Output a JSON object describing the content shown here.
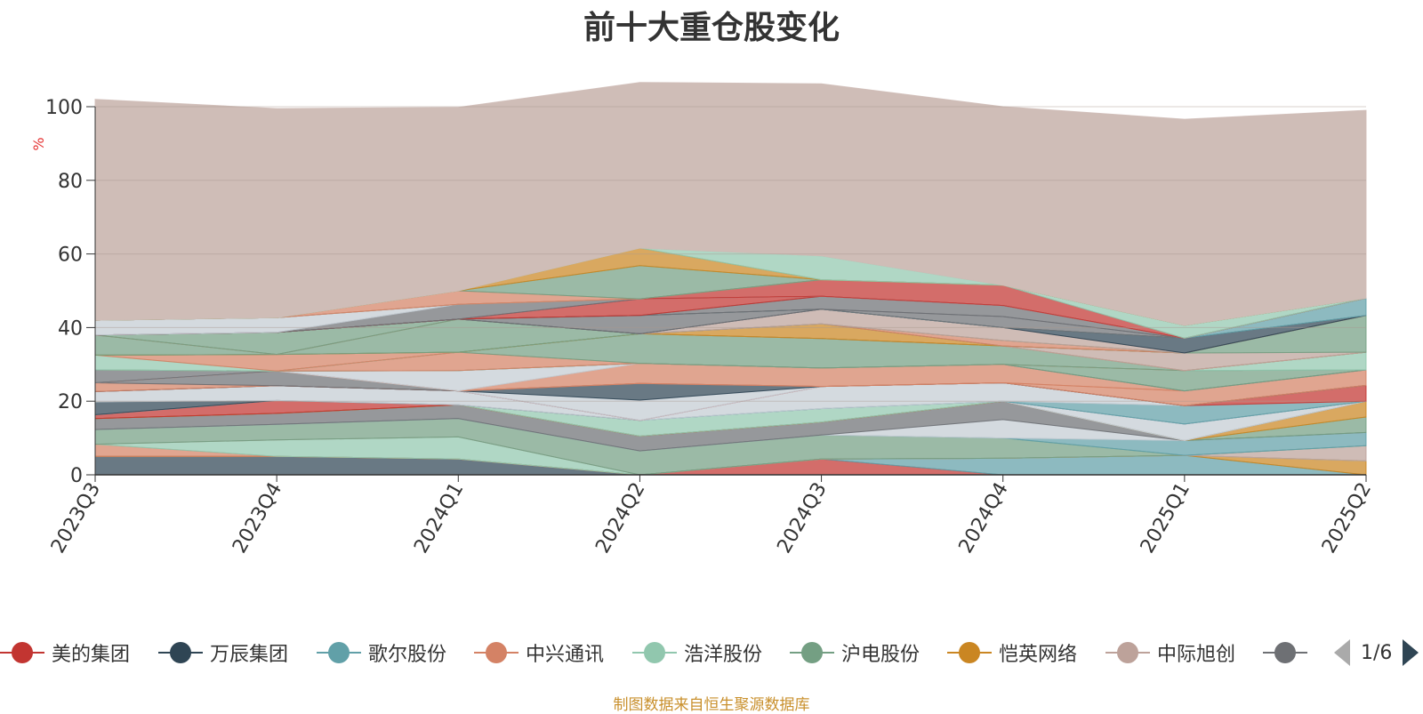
{
  "title": "前十大重仓股变化",
  "source": "制图数据来自恒生聚源数据库",
  "legend": {
    "pager": "1/6",
    "items": [
      {
        "name": "美的集团",
        "color": "#c23531"
      },
      {
        "name": "万辰集团",
        "color": "#2f4554"
      },
      {
        "name": "歌尔股份",
        "color": "#61a0a8"
      },
      {
        "name": "中兴通讯",
        "color": "#d48265"
      },
      {
        "name": "浩洋股份",
        "color": "#91c7ae"
      },
      {
        "name": "沪电股份",
        "color": "#749f83"
      },
      {
        "name": "恺英网络",
        "color": "#ca8622"
      },
      {
        "name": "中际旭创",
        "color": "#bda29a"
      },
      {
        "name": "",
        "color": "#6e7074"
      }
    ]
  },
  "chart_data": {
    "type": "area",
    "title": "前十大重仓股变化",
    "ylabel": "%",
    "ylim": [
      0,
      100
    ],
    "yticks": [
      0,
      20,
      40,
      60,
      80,
      100
    ],
    "categories": [
      "2023Q3",
      "2023Q4",
      "2024Q1",
      "2024Q2",
      "2024Q3",
      "2024Q4",
      "2025Q1",
      "2025Q2"
    ],
    "stacked": true,
    "series": [
      {
        "values": [
          5.0,
          5.0,
          4.3,
          0,
          0,
          0,
          0,
          0
        ],
        "color": "#2f4554"
      },
      {
        "values": [
          0,
          0,
          0,
          0,
          4.3,
          0,
          0,
          0
        ],
        "color": "#c23531"
      },
      {
        "values": [
          0,
          0,
          0,
          0,
          0,
          4.5,
          5.3,
          0
        ],
        "color": "#61a0a8"
      },
      {
        "values": [
          0,
          0,
          0,
          0,
          0,
          0,
          0,
          3.8
        ],
        "color": "#ca8622"
      },
      {
        "values": [
          3.3,
          0,
          0,
          0,
          0,
          0,
          0,
          0
        ],
        "color": "#d48265"
      },
      {
        "values": [
          0,
          4.5,
          6.0,
          0,
          0,
          0,
          0,
          0
        ],
        "color": "#91c7ae"
      },
      {
        "values": [
          0,
          0,
          0,
          0,
          0,
          0,
          0,
          4.1
        ],
        "color": "#bda29a"
      },
      {
        "values": [
          4.0,
          4.2,
          5.0,
          6.5,
          6.5,
          5.5,
          0,
          0
        ],
        "color": "#749f83"
      },
      {
        "values": [
          0,
          0,
          0,
          0,
          0,
          0,
          4.0,
          3.6
        ],
        "color": "#61a0a8"
      },
      {
        "values": [
          0,
          0,
          0,
          0,
          0,
          5.0,
          0,
          0
        ],
        "color": "#c4ccd3"
      },
      {
        "values": [
          3.0,
          3.0,
          3.7,
          4.0,
          3.5,
          5.0,
          0,
          0
        ],
        "color": "#6e7074"
      },
      {
        "values": [
          0,
          0,
          0,
          0,
          0,
          0,
          0,
          4.2
        ],
        "color": "#749f83"
      },
      {
        "values": [
          0,
          0,
          0,
          0,
          0,
          0,
          0,
          4.3
        ],
        "color": "#ca8622"
      },
      {
        "values": [
          1.0,
          3.5,
          0,
          0,
          0,
          0,
          0,
          0
        ],
        "color": "#c23531"
      },
      {
        "values": [
          0,
          0,
          0,
          4.3,
          3.7,
          0,
          0,
          0
        ],
        "color": "#91c7ae"
      },
      {
        "values": [
          0,
          0,
          0,
          0,
          0,
          0,
          4.5,
          0
        ],
        "color": "#c4ccd3"
      },
      {
        "values": [
          3.5,
          0,
          0,
          0,
          0,
          0,
          0,
          0
        ],
        "color": "#2f4554"
      },
      {
        "values": [
          2.8,
          4.0,
          3.8,
          0,
          0,
          0,
          0,
          0
        ],
        "color": "#c4ccd3"
      },
      {
        "values": [
          0,
          0,
          0,
          0,
          0,
          0,
          5.0,
          0
        ],
        "color": "#61a0a8"
      },
      {
        "values": [
          0,
          0,
          0,
          0,
          6.0,
          5.0,
          0,
          0
        ],
        "color": "#c4ccd3"
      },
      {
        "values": [
          0,
          0,
          0,
          0,
          0,
          0,
          0,
          4.3
        ],
        "color": "#c23531"
      },
      {
        "values": [
          0,
          0,
          0,
          5.5,
          0,
          0,
          0,
          0
        ],
        "color": "#c4ccd3"
      },
      {
        "values": [
          0,
          0,
          0,
          4.5,
          0,
          0,
          0,
          0
        ],
        "color": "#2f4554"
      },
      {
        "values": [
          2.4,
          0,
          0,
          0,
          0,
          0,
          0,
          0
        ],
        "color": "#d48265"
      },
      {
        "values": [
          0,
          4.0,
          0,
          0,
          0,
          0,
          0,
          0
        ],
        "color": "#6e7074"
      },
      {
        "values": [
          0,
          0,
          0,
          0,
          0,
          0,
          4.0,
          4.2
        ],
        "color": "#d48265"
      },
      {
        "values": [
          0,
          0,
          0,
          5.5,
          5.0,
          5.0,
          0,
          0
        ],
        "color": "#d48265"
      },
      {
        "values": [
          0,
          0,
          5.5,
          0,
          0,
          0,
          0,
          0
        ],
        "color": "#c4ccd3"
      },
      {
        "values": [
          3.5,
          0,
          0,
          0,
          0,
          0,
          0,
          0
        ],
        "color": "#6e7074"
      },
      {
        "values": [
          0,
          0,
          0,
          0,
          0,
          0,
          5.5,
          0
        ],
        "color": "#749f83"
      },
      {
        "values": [
          0,
          0,
          0,
          0,
          0,
          0,
          0,
          4.8
        ],
        "color": "#91c7ae"
      },
      {
        "values": [
          0,
          0,
          5.0,
          0,
          0,
          0,
          0,
          0
        ],
        "color": "#d48265"
      },
      {
        "values": [
          0,
          0,
          0,
          8.0,
          8.0,
          5.0,
          0,
          0
        ],
        "color": "#749f83"
      },
      {
        "values": [
          4.0,
          0,
          0,
          0,
          0,
          0,
          0,
          0
        ],
        "color": "#91c7ae"
      },
      {
        "values": [
          0,
          4.5,
          0,
          0,
          0,
          0,
          0,
          0
        ],
        "color": "#d48265"
      },
      {
        "values": [
          0,
          0,
          0,
          0,
          0,
          0,
          4.8,
          0
        ],
        "color": "#bda29a"
      },
      {
        "values": [
          0,
          0,
          0,
          0,
          0,
          0,
          0,
          10.0
        ],
        "color": "#749f83"
      },
      {
        "values": [
          0,
          0,
          0,
          0,
          4.0,
          0,
          0,
          0
        ],
        "color": "#ca8622"
      },
      {
        "values": [
          5.5,
          0,
          9.0,
          0,
          0,
          0,
          0,
          0
        ],
        "color": "#749f83"
      },
      {
        "values": [
          0,
          0,
          0,
          0,
          0,
          1.5,
          0,
          0
        ],
        "color": "#d48265"
      },
      {
        "values": [
          0,
          6.0,
          0,
          0,
          0,
          0,
          0,
          0
        ],
        "color": "#749f83"
      },
      {
        "values": [
          0,
          0,
          0,
          0,
          4.0,
          3.5,
          0,
          0
        ],
        "color": "#bda29a"
      },
      {
        "values": [
          0,
          0,
          0,
          0,
          0,
          0,
          4.0,
          0
        ],
        "color": "#2f4554"
      },
      {
        "values": [
          0,
          0,
          0,
          5.0,
          0,
          0,
          0,
          0
        ],
        "color": "#6e7074"
      },
      {
        "values": [
          0,
          0,
          0,
          0,
          0,
          0,
          0,
          4.7
        ],
        "color": "#61a0a8"
      },
      {
        "values": [
          0,
          0,
          0,
          0,
          0,
          3.0,
          0,
          0
        ],
        "color": "#6e7074"
      },
      {
        "values": [
          0,
          0,
          0,
          0,
          3.5,
          3.0,
          0,
          0
        ],
        "color": "#6e7074"
      },
      {
        "values": [
          0,
          0,
          0,
          4.5,
          0,
          0,
          0,
          0
        ],
        "color": "#c23531"
      },
      {
        "values": [
          0,
          0,
          4.0,
          0,
          0,
          0,
          0,
          0
        ],
        "color": "#6e7074"
      },
      {
        "values": [
          4.0,
          4.0,
          0,
          0,
          0,
          0,
          0,
          0
        ],
        "color": "#c4ccd3"
      },
      {
        "values": [
          0,
          0,
          0,
          0,
          4.5,
          5.5,
          0,
          0
        ],
        "color": "#c23531"
      },
      {
        "values": [
          0,
          0,
          0,
          0,
          0,
          0,
          3.5,
          0
        ],
        "color": "#91c7ae"
      },
      {
        "values": [
          0,
          0,
          3.7,
          0,
          0,
          0,
          0,
          0
        ],
        "color": "#d48265"
      },
      {
        "values": [
          0,
          0,
          0,
          9.0,
          0,
          0,
          0,
          0
        ],
        "color": "#749f83"
      },
      {
        "values": [
          0,
          0,
          0,
          4.8,
          0,
          0,
          0,
          0
        ],
        "color": "#ca8622"
      },
      {
        "values": [
          0,
          0,
          0,
          0,
          6.5,
          0,
          0,
          0
        ],
        "color": "#91c7ae"
      },
      {
        "values": [
          60.0,
          56.8,
          49.8,
          45.0,
          46.7,
          48.5,
          56.0,
          51.0
        ],
        "color": "#cfbdb7"
      }
    ]
  }
}
